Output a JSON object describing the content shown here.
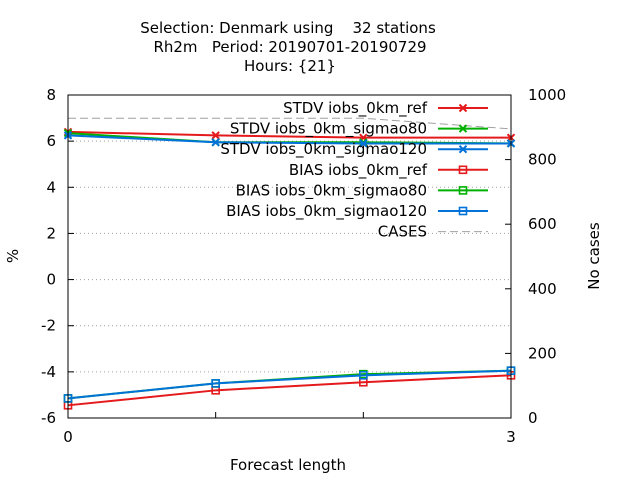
{
  "chart_data": {
    "type": "line",
    "title_lines": [
      "Selection: Denmark using    32 stations",
      "Rh2m   Period: 20190701-20190729",
      "Hours: {21}"
    ],
    "xlabel": "Forecast length",
    "ylabel": "%",
    "y2label": "No cases",
    "x": [
      0,
      1,
      2,
      3
    ],
    "xticks": [
      0,
      3
    ],
    "xlim": [
      0,
      3
    ],
    "ylim": [
      -6,
      8
    ],
    "yticks": [
      -6,
      -4,
      -2,
      0,
      2,
      4,
      6,
      8
    ],
    "y2lim": [
      0,
      1000
    ],
    "y2ticks": [
      0,
      200,
      400,
      600,
      800,
      1000
    ],
    "grid": "horizontal dotted",
    "legend_position": "top-right",
    "series": [
      {
        "name": "STDV iobs_0km_ref",
        "axis": "y",
        "color": "#e41a1c",
        "marker": "x",
        "values": [
          6.4,
          6.25,
          6.15,
          6.15
        ]
      },
      {
        "name": "STDV iobs_0km_sigmao80",
        "axis": "y",
        "color": "#00b000",
        "marker": "x",
        "values": [
          6.35,
          5.95,
          5.95,
          5.9
        ]
      },
      {
        "name": "STDV iobs_0km_sigmao120",
        "axis": "y",
        "color": "#0072d9",
        "marker": "x",
        "values": [
          6.25,
          5.95,
          5.9,
          5.9
        ]
      },
      {
        "name": "BIAS iobs_0km_ref",
        "axis": "y",
        "color": "#e41a1c",
        "marker": "square",
        "values": [
          -5.45,
          -4.8,
          -4.45,
          -4.15
        ]
      },
      {
        "name": "BIAS iobs_0km_sigmao80",
        "axis": "y",
        "color": "#00b000",
        "marker": "square",
        "values": [
          -5.15,
          -4.5,
          -4.1,
          -3.95
        ]
      },
      {
        "name": "BIAS iobs_0km_sigmao120",
        "axis": "y",
        "color": "#0072d9",
        "marker": "square",
        "values": [
          -5.15,
          -4.5,
          -4.15,
          -3.95
        ]
      },
      {
        "name": "CASES",
        "axis": "y2",
        "color": "#a0a0a0",
        "marker": "none",
        "dashed": true,
        "values": [
          928,
          928,
          928,
          895
        ]
      }
    ]
  }
}
